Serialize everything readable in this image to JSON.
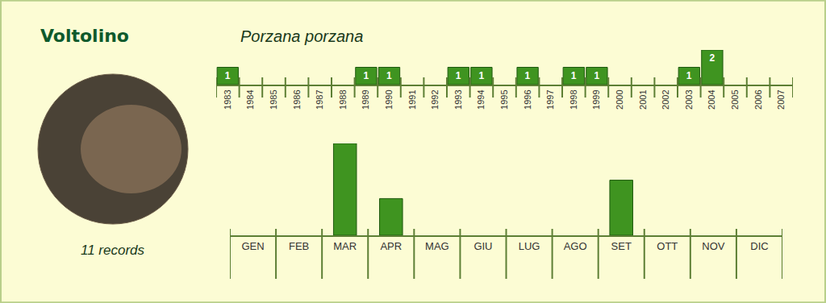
{
  "title": "Voltolino",
  "subtitle": "Porzana porzana",
  "caption": "11 records",
  "chart_data": [
    {
      "type": "bar",
      "categories": [
        "1983",
        "1984",
        "1985",
        "1986",
        "1987",
        "1988",
        "1989",
        "1990",
        "1991",
        "1992",
        "1993",
        "1994",
        "1995",
        "1996",
        "1997",
        "1998",
        "1999",
        "2000",
        "2001",
        "2002",
        "2003",
        "2004",
        "2005",
        "2006",
        "2007"
      ],
      "values": [
        1,
        null,
        null,
        null,
        null,
        null,
        1,
        1,
        null,
        null,
        1,
        1,
        null,
        1,
        null,
        1,
        1,
        null,
        null,
        null,
        1,
        2,
        null,
        null,
        null
      ],
      "color": "#3f9420",
      "ylim": [
        0,
        2
      ],
      "data_labels": true,
      "tick_labels": "x",
      "grid": false
    },
    {
      "type": "bar",
      "categories": [
        "GEN",
        "FEB",
        "MAR",
        "APR",
        "MAG",
        "GIU",
        "LUG",
        "AGO",
        "SET",
        "OTT",
        "NOV",
        "DIC"
      ],
      "values": [
        null,
        null,
        5,
        2,
        null,
        null,
        null,
        null,
        3,
        null,
        null,
        null
      ],
      "color": "#3f9420",
      "ylim": [
        0,
        5
      ],
      "data_labels": false,
      "tick_labels": "x",
      "grid": false
    }
  ]
}
